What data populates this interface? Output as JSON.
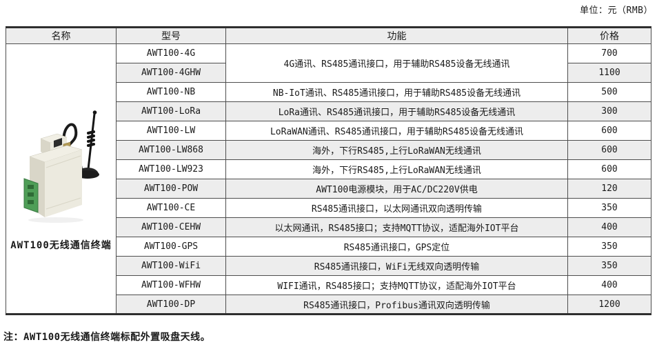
{
  "page": {
    "unit_label": "单位：元（RMB）",
    "note": "注：AWT100无线通信终端标配外置吸盘天线。"
  },
  "table": {
    "headers": [
      "名称",
      "型号",
      "功能",
      "价格"
    ],
    "product_name": "AWT100无线通信终端",
    "product_image": "awt100-device-photo",
    "rows": [
      {
        "model": "AWT100-4G",
        "function": "4G通讯、RS485通讯接口，用于辅助RS485设备无线通讯",
        "function_rowspan": 2,
        "price": "700"
      },
      {
        "model": "AWT100-4GHW",
        "price": "1100"
      },
      {
        "model": "AWT100-NB",
        "function": "NB-IoT通讯、RS485通讯接口，用于辅助RS485设备无线通讯",
        "price": "500"
      },
      {
        "model": "AWT100-LoRa",
        "function": "LoRa通讯、RS485通讯接口，用于辅助RS485设备无线通讯",
        "price": "300"
      },
      {
        "model": "AWT100-LW",
        "function": "LoRaWAN通讯、RS485通讯接口，用于辅助RS485设备无线通讯",
        "price": "600"
      },
      {
        "model": "AWT100-LW868",
        "function": "海外，下行RS485,上行LoRaWAN无线通讯",
        "price": "600"
      },
      {
        "model": "AWT100-LW923",
        "function": "海外，下行RS485,上行LoRaWAN无线通讯",
        "price": "600"
      },
      {
        "model": "AWT100-POW",
        "function": "AWT100电源模块，用于AC/DC220V供电",
        "price": "120"
      },
      {
        "model": "AWT100-CE",
        "function": "RS485通讯接口，以太网通讯双向透明传输",
        "price": "350"
      },
      {
        "model": "AWT100-CEHW",
        "function": "以太网通讯，RS485接口；支持MQTT协议，适配海外IOT平台",
        "price": "400"
      },
      {
        "model": "AWT100-GPS",
        "function": "RS485通讯接口，GPS定位",
        "price": "350"
      },
      {
        "model": "AWT100-WiFi",
        "function": "RS485通讯接口，WiFi无线双向透明传输",
        "price": "350"
      },
      {
        "model": "AWT100-WFHW",
        "function": "WIFI通讯，RS485接口；支持MQTT协议，适配海外IOT平台",
        "price": "400"
      },
      {
        "model": "AWT100-DP",
        "function": "RS485通讯接口，Profibus通讯双向透明传输",
        "price": "1200"
      }
    ],
    "colors": {
      "header_bg": "#ededed",
      "alt_row_bg": "#ededed",
      "border": "#4d4d4d",
      "outer_border": "#2e2e2e",
      "device_body": "#e9e7db",
      "terminal_green": "#4f9e57",
      "antenna_black": "#1a1a1a"
    }
  }
}
